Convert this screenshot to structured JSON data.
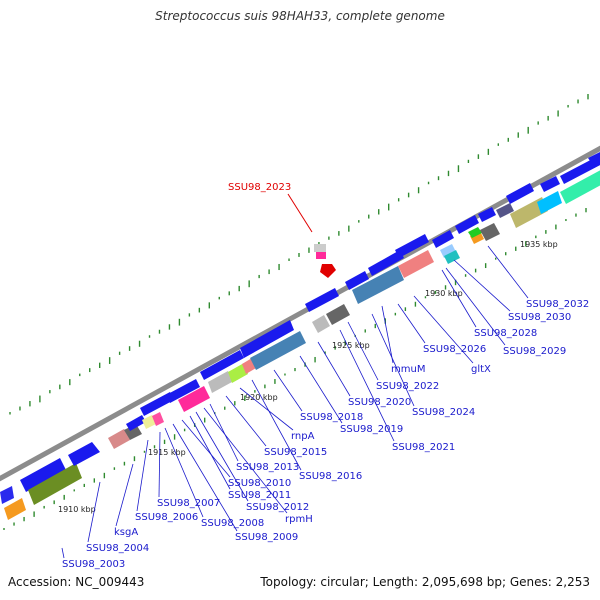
{
  "title": "Streptococcus suis 98HAH33, complete genome",
  "accession": "Accession: NC_009443",
  "summary": "Topology: circular; Length: 2,095,698 bp; Genes: 2,253",
  "highlight_label": "SSU98_2023",
  "ticks": [
    "1910 kbp",
    "1915 kbp",
    "1920 kbp",
    "1925 kbp",
    "1930 kbp",
    "1935 kbp"
  ],
  "gene_labels": [
    "SSU98_2003",
    "SSU98_2004",
    "ksgA",
    "SSU98_2006",
    "SSU98_2007",
    "SSU98_2008",
    "SSU98_2009",
    "SSU98_2010",
    "SSU98_2011",
    "SSU98_2012",
    "rpmH",
    "SSU98_2013",
    "SSU98_2015",
    "rnpA",
    "SSU98_2016",
    "SSU98_2018",
    "SSU98_2019",
    "SSU98_2020",
    "SSU98_2021",
    "SSU98_2022",
    "SSU98_2024",
    "mmuM",
    "gltX",
    "SSU98_2026",
    "SSU98_2028",
    "SSU98_2029",
    "SSU98_2030",
    "SSU98_2032"
  ],
  "colors": {
    "backbone": "#8c8c8c",
    "highlight": "#e00000",
    "label": "#1a1acc",
    "dash": "#2f8a2f"
  }
}
